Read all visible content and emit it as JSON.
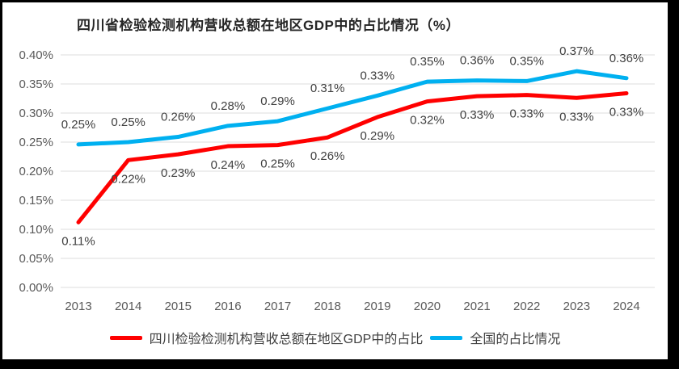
{
  "frame": {
    "border_color": "#000000",
    "background": "#ffffff"
  },
  "colors": {
    "grid": "#DEDEDE",
    "axis_text": "#595959",
    "data_label": "#404040",
    "title_text": "#262626",
    "series_red": "#FF0000",
    "series_blue": "#00B0F0"
  },
  "chart_data": {
    "type": "line",
    "title": "四川省检验检测机构营收总额在地区GDP中的占比情况（%）",
    "xlabel": "",
    "ylabel": "",
    "x": [
      2013,
      2014,
      2015,
      2016,
      2017,
      2018,
      2019,
      2020,
      2021,
      2022,
      2023,
      2024
    ],
    "y_ticks": [
      0.4,
      0.35,
      0.3,
      0.25,
      0.2,
      0.15,
      0.1,
      0.05,
      0.0
    ],
    "ylim": [
      0.0,
      0.4
    ],
    "y_unit": "%",
    "grid": true,
    "legend_position": "bottom",
    "series": [
      {
        "name": "四川检验检测机构营收总额在地区GDP中的占比",
        "color": "#FF0000",
        "label_position": "below",
        "values": [
          0.11,
          0.22,
          0.23,
          0.24,
          0.25,
          0.26,
          0.29,
          0.32,
          0.33,
          0.33,
          0.33,
          0.33
        ],
        "plot_values": [
          0.112,
          0.219,
          0.229,
          0.243,
          0.245,
          0.258,
          0.293,
          0.32,
          0.329,
          0.331,
          0.326,
          0.334
        ]
      },
      {
        "name": "全国的占比情况",
        "color": "#00B0F0",
        "label_position": "above",
        "values": [
          0.25,
          0.25,
          0.26,
          0.28,
          0.29,
          0.31,
          0.33,
          0.35,
          0.36,
          0.35,
          0.37,
          0.36
        ],
        "plot_values": [
          0.246,
          0.25,
          0.259,
          0.278,
          0.286,
          0.308,
          0.33,
          0.354,
          0.356,
          0.355,
          0.372,
          0.36
        ]
      }
    ]
  }
}
